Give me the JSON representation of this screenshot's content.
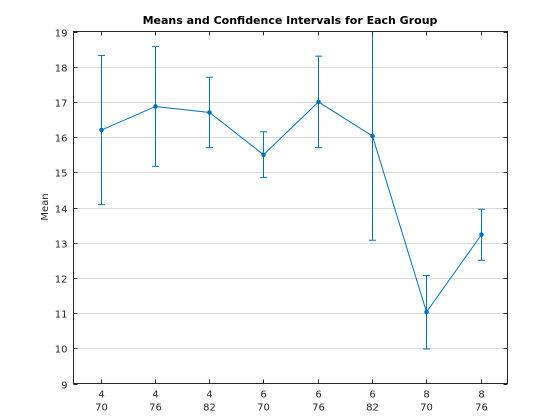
{
  "chart_data": {
    "type": "line",
    "title": "Means and Confidence Intervals for Each Group",
    "xlabel": "",
    "ylabel": "Mean",
    "ylim": [
      9,
      19
    ],
    "yticks": [
      9,
      10,
      11,
      12,
      13,
      14,
      15,
      16,
      17,
      18,
      19
    ],
    "grid": "horizontal",
    "color": "#0072bd",
    "categories": [
      [
        "4",
        "70"
      ],
      [
        "4",
        "76"
      ],
      [
        "4",
        "82"
      ],
      [
        "6",
        "70"
      ],
      [
        "6",
        "76"
      ],
      [
        "6",
        "82"
      ],
      [
        "8",
        "70"
      ],
      [
        "8",
        "76"
      ]
    ],
    "means": [
      16.2,
      16.87,
      16.7,
      15.5,
      17.0,
      16.03,
      11.03,
      13.23
    ],
    "lower": [
      14.08,
      15.17,
      15.7,
      14.85,
      15.7,
      13.07,
      9.98,
      12.5
    ],
    "upper": [
      18.32,
      18.57,
      17.7,
      16.15,
      18.3,
      19.0,
      12.07,
      13.95
    ]
  }
}
